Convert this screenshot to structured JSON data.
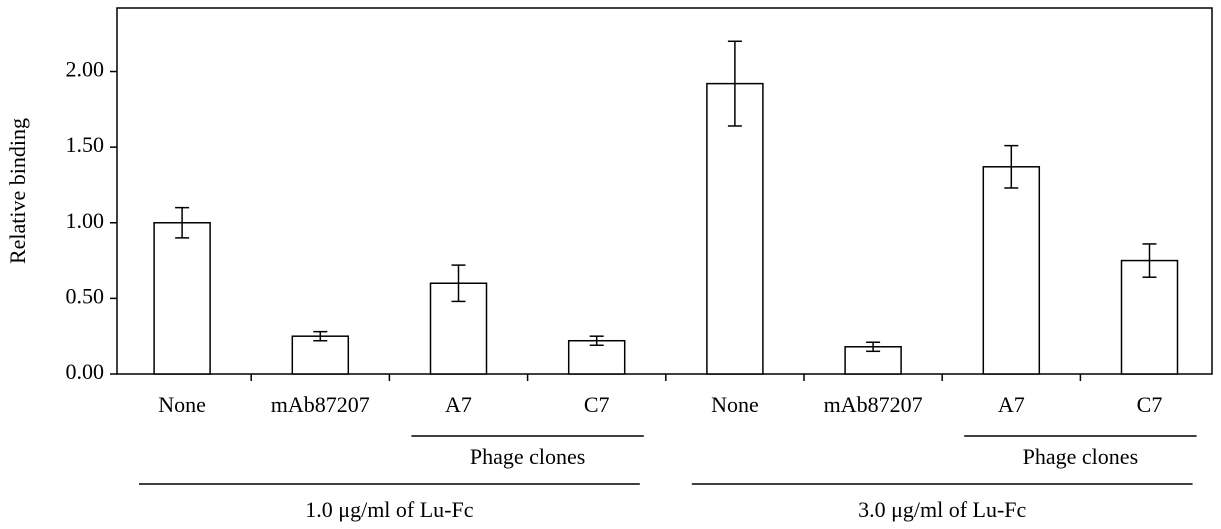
{
  "chart_data": {
    "type": "bar",
    "y_label": "Relative binding",
    "categories": [
      "None",
      "mAb87207",
      "A7",
      "C7",
      "None",
      "mAb87207",
      "A7",
      "C7"
    ],
    "values": [
      1.0,
      0.25,
      0.6,
      0.22,
      1.92,
      0.18,
      1.37,
      0.75
    ],
    "errors": [
      0.1,
      0.03,
      0.12,
      0.03,
      0.28,
      0.03,
      0.14,
      0.11
    ],
    "color": "#ffffff",
    "groups": [
      {
        "name": "1.0 μg/ml of Lu-Fc",
        "subgroup": "Phage clones"
      },
      {
        "name": "3.0 μg/ml of Lu-Fc",
        "subgroup": "Phage clones"
      }
    ],
    "ylim": [
      0,
      2.42
    ],
    "yticks": [
      {
        "value": 0,
        "label": "0.00"
      },
      {
        "value": 0.5,
        "label": "0.50"
      },
      {
        "value": 1,
        "label": "1.00"
      },
      {
        "value": 1.5,
        "label": "1.50"
      },
      {
        "value": 2,
        "label": "2.00"
      }
    ],
    "grid": false
  }
}
